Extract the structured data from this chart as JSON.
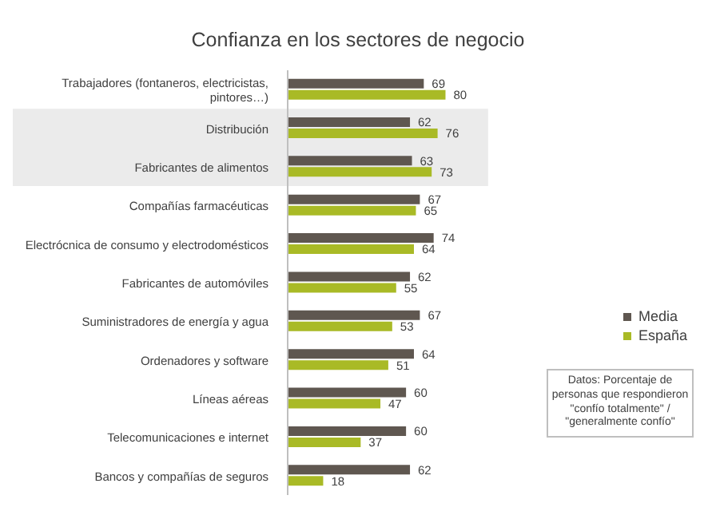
{
  "chart_data": {
    "type": "bar",
    "orientation": "horizontal",
    "title": "Confianza en los sectores de negocio",
    "categories": [
      "Trabajadores (fontaneros, electricistas, pintores…)",
      "Distribución",
      "Fabricantes de alimentos",
      "Compañías farmacéuticas",
      "Electrócnica de consumo y electrodomésticos",
      "Fabricantes de automóviles",
      "Suministradores de energía y agua",
      "Ordenadores y software",
      "Líneas aéreas",
      "Telecomunicaciones e internet",
      "Bancos y compañías de seguros"
    ],
    "series": [
      {
        "name": "Media",
        "color": "#5f5750",
        "values": [
          69,
          62,
          63,
          67,
          74,
          62,
          67,
          64,
          60,
          60,
          62
        ]
      },
      {
        "name": "España",
        "color": "#a9ba26",
        "values": [
          80,
          76,
          73,
          65,
          64,
          55,
          53,
          51,
          47,
          37,
          18
        ]
      }
    ],
    "tick_labels": "y",
    "data_labels": true,
    "legend": "right",
    "bands": [
      {
        "axis": "y",
        "from": "Distribución",
        "to": "Fabricantes de alimentos",
        "color": "#ebebeb"
      }
    ],
    "annotations": [
      "Datos: Porcentaje de personas que respondieron \"confío totalmente\" / \"generalmente confío\""
    ]
  }
}
